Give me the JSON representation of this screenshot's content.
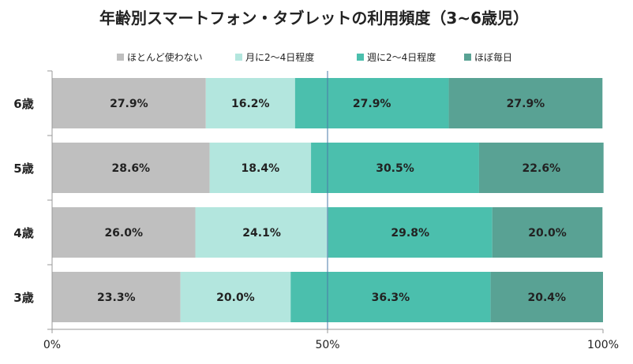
{
  "chart_data": {
    "type": "bar",
    "orientation": "horizontal",
    "stacked": true,
    "title": "年齢別スマートフォン・タブレットの利用頻度（3~6歳児）",
    "categories": [
      "6歳",
      "5歳",
      "4歳",
      "3歳"
    ],
    "series": [
      {
        "name": "ほとんど使わない",
        "color": "#bfbfbf",
        "values": [
          27.9,
          28.6,
          26.0,
          23.3
        ],
        "labels": [
          "27.9%",
          "28.6%",
          "26.0%",
          "23.3%"
        ]
      },
      {
        "name": "月に2〜4日程度",
        "color": "#b3e6de",
        "values": [
          16.2,
          18.4,
          24.1,
          20.0
        ],
        "labels": [
          "16.2%",
          "18.4%",
          "24.1%",
          "20.0%"
        ]
      },
      {
        "name": "週に2〜4日程度",
        "color": "#4bbfad",
        "values": [
          27.9,
          30.5,
          29.8,
          36.3
        ],
        "labels": [
          "27.9%",
          "30.5%",
          "29.8%",
          "36.3%"
        ]
      },
      {
        "name": "ほぼ毎日",
        "color": "#59a294",
        "values": [
          27.9,
          22.6,
          20.0,
          20.4
        ],
        "labels": [
          "27.9%",
          "22.6%",
          "20.0%",
          "20.4%"
        ]
      }
    ],
    "x_ticks": [
      {
        "value": 0,
        "label": "0%"
      },
      {
        "value": 50,
        "label": "50%"
      },
      {
        "value": 100,
        "label": "100%"
      }
    ],
    "xlim": [
      0,
      100
    ],
    "reference_line": 50,
    "reference_line_color": "#4a78a8",
    "legend_position": "top",
    "grid": false
  }
}
